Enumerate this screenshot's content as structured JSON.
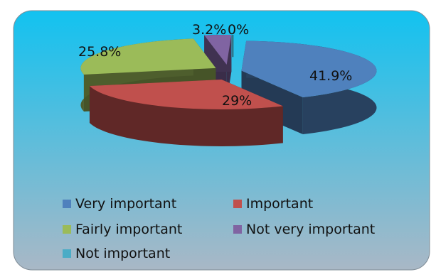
{
  "chart_data": {
    "type": "pie",
    "variant": "3d-exploded",
    "categories": [
      "Very important",
      "Important",
      "Fairly important",
      "Not very important",
      "Not important"
    ],
    "values": [
      41.9,
      29,
      25.8,
      3.2,
      0
    ],
    "data_labels": [
      "41.9%",
      "29%",
      "25.8%",
      "3.2%",
      "0%"
    ],
    "colors": [
      "#4f81bd",
      "#c0504d",
      "#9bbb59",
      "#8064a2",
      "#4bacc6"
    ],
    "legend_position": "bottom",
    "background": {
      "gradient_top": "#12c2f0",
      "gradient_bottom": "#a9b8c6"
    }
  }
}
